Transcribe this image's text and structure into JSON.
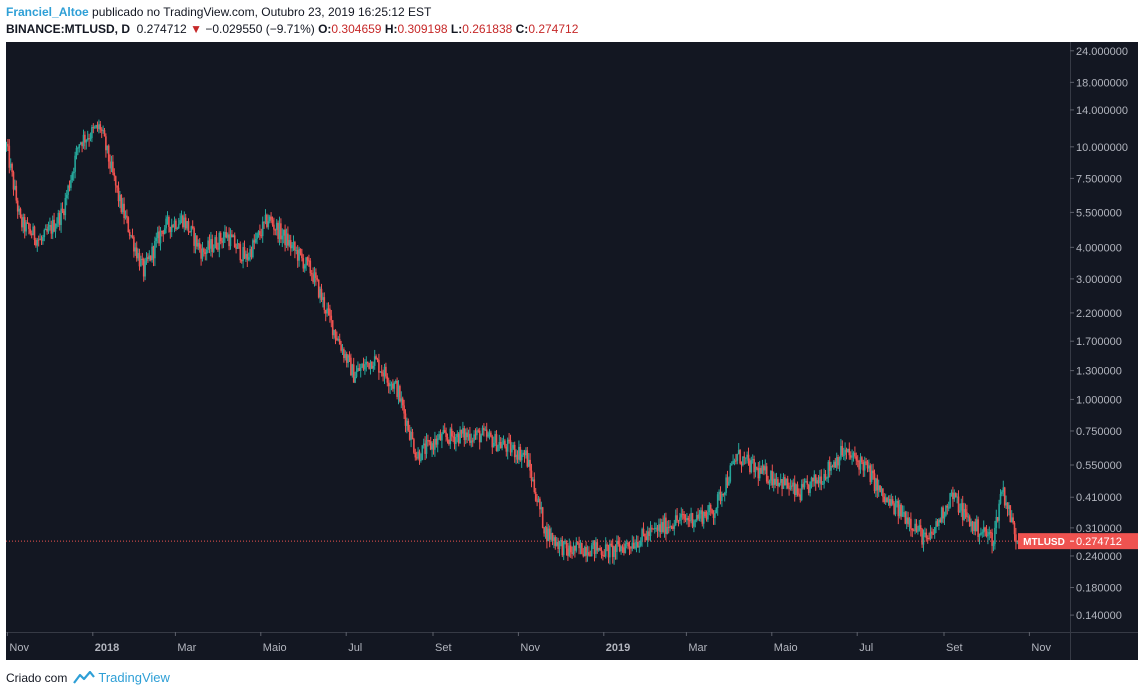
{
  "header": {
    "author": "Franciel_Altoe",
    "published": "publicado no TradingView.com, Outubro 23, 2019 16:25:12 EST",
    "symbol": "BINANCE:MTLUSD, D",
    "last": "0.274712",
    "change": "−0.029550 (−9.71%)",
    "o_label": "O:",
    "o_value": "0.304659",
    "h_label": "H:",
    "h_value": "0.309198",
    "l_label": "L:",
    "l_value": "0.261838",
    "c_label": "C:",
    "c_value": "0.274712"
  },
  "footer": {
    "created_with": "Criado com",
    "brand": "TradingView"
  },
  "colors": {
    "background": "#131722",
    "up": "#26a69a",
    "down": "#ef5350",
    "price_line": "#ef5350",
    "axis_text": "#b2b5be",
    "label_bg": "#ef5350"
  },
  "chart_data": {
    "type": "candlestick",
    "symbol": "MTLUSD",
    "exchange": "BINANCE",
    "interval": "D",
    "y_scale": "log",
    "last_price": 0.274712,
    "last_price_label": "0.274712",
    "price_line_label": "MTLUSD",
    "ylim": [
      0.12,
      26
    ],
    "y_ticks": [
      {
        "value": 24,
        "label": "24.000000"
      },
      {
        "value": 18,
        "label": "18.000000"
      },
      {
        "value": 14,
        "label": "14.000000"
      },
      {
        "value": 10,
        "label": "10.000000"
      },
      {
        "value": 7.5,
        "label": "7.500000"
      },
      {
        "value": 5.5,
        "label": "5.500000"
      },
      {
        "value": 4,
        "label": "4.000000"
      },
      {
        "value": 3,
        "label": "3.000000"
      },
      {
        "value": 2.2,
        "label": "2.200000"
      },
      {
        "value": 1.7,
        "label": "1.700000"
      },
      {
        "value": 1.3,
        "label": "1.300000"
      },
      {
        "value": 1,
        "label": "1.000000"
      },
      {
        "value": 0.75,
        "label": "0.750000"
      },
      {
        "value": 0.55,
        "label": "0.550000"
      },
      {
        "value": 0.41,
        "label": "0.410000"
      },
      {
        "value": 0.31,
        "label": "0.310000"
      },
      {
        "value": 0.24,
        "label": "0.240000"
      },
      {
        "value": 0.18,
        "label": "0.180000"
      },
      {
        "value": 0.14,
        "label": "0.140000"
      }
    ],
    "x_range": [
      "2017-10-31",
      "2019-11-30"
    ],
    "x_ticks": [
      {
        "date": "2017-11-01",
        "label": "Nov",
        "bold": false
      },
      {
        "date": "2018-01-01",
        "label": "2018",
        "bold": true
      },
      {
        "date": "2018-03-01",
        "label": "Mar",
        "bold": false
      },
      {
        "date": "2018-05-01",
        "label": "Maio",
        "bold": false
      },
      {
        "date": "2018-07-01",
        "label": "Jul",
        "bold": false
      },
      {
        "date": "2018-09-01",
        "label": "Set",
        "bold": false
      },
      {
        "date": "2018-11-01",
        "label": "Nov",
        "bold": false
      },
      {
        "date": "2019-01-01",
        "label": "2019",
        "bold": true
      },
      {
        "date": "2019-03-01",
        "label": "Mar",
        "bold": false
      },
      {
        "date": "2019-05-01",
        "label": "Maio",
        "bold": false
      },
      {
        "date": "2019-07-01",
        "label": "Jul",
        "bold": false
      },
      {
        "date": "2019-09-01",
        "label": "Set",
        "bold": false
      },
      {
        "date": "2019-11-01",
        "label": "Nov",
        "bold": false
      }
    ],
    "close_trend": [
      [
        "2017-10-31",
        10.0
      ],
      [
        "2017-11-10",
        5.0
      ],
      [
        "2017-11-25",
        4.2
      ],
      [
        "2017-12-10",
        5.5
      ],
      [
        "2017-12-22",
        10.5
      ],
      [
        "2018-01-06",
        12.0
      ],
      [
        "2018-01-20",
        6.0
      ],
      [
        "2018-02-06",
        3.2
      ],
      [
        "2018-02-20",
        4.8
      ],
      [
        "2018-03-06",
        5.2
      ],
      [
        "2018-03-20",
        3.8
      ],
      [
        "2018-04-06",
        4.5
      ],
      [
        "2018-04-20",
        3.6
      ],
      [
        "2018-05-06",
        5.2
      ],
      [
        "2018-05-20",
        4.2
      ],
      [
        "2018-06-06",
        3.2
      ],
      [
        "2018-06-20",
        2.0
      ],
      [
        "2018-07-06",
        1.25
      ],
      [
        "2018-07-20",
        1.45
      ],
      [
        "2018-08-06",
        1.1
      ],
      [
        "2018-08-20",
        0.6
      ],
      [
        "2018-09-06",
        0.7
      ],
      [
        "2018-09-20",
        0.72
      ],
      [
        "2018-10-06",
        0.72
      ],
      [
        "2018-10-20",
        0.66
      ],
      [
        "2018-11-06",
        0.6
      ],
      [
        "2018-11-20",
        0.3
      ],
      [
        "2018-12-06",
        0.25
      ],
      [
        "2018-12-20",
        0.26
      ],
      [
        "2019-01-06",
        0.25
      ],
      [
        "2019-01-20",
        0.27
      ],
      [
        "2019-02-06",
        0.3
      ],
      [
        "2019-02-20",
        0.33
      ],
      [
        "2019-03-06",
        0.34
      ],
      [
        "2019-03-20",
        0.36
      ],
      [
        "2019-04-06",
        0.6
      ],
      [
        "2019-04-20",
        0.52
      ],
      [
        "2019-05-06",
        0.48
      ],
      [
        "2019-05-20",
        0.42
      ],
      [
        "2019-06-06",
        0.5
      ],
      [
        "2019-06-20",
        0.62
      ],
      [
        "2019-07-06",
        0.55
      ],
      [
        "2019-07-20",
        0.4
      ],
      [
        "2019-08-06",
        0.34
      ],
      [
        "2019-08-20",
        0.27
      ],
      [
        "2019-09-06",
        0.42
      ],
      [
        "2019-09-20",
        0.32
      ],
      [
        "2019-10-06",
        0.28
      ],
      [
        "2019-10-12",
        0.45
      ],
      [
        "2019-10-23",
        0.275
      ]
    ]
  }
}
